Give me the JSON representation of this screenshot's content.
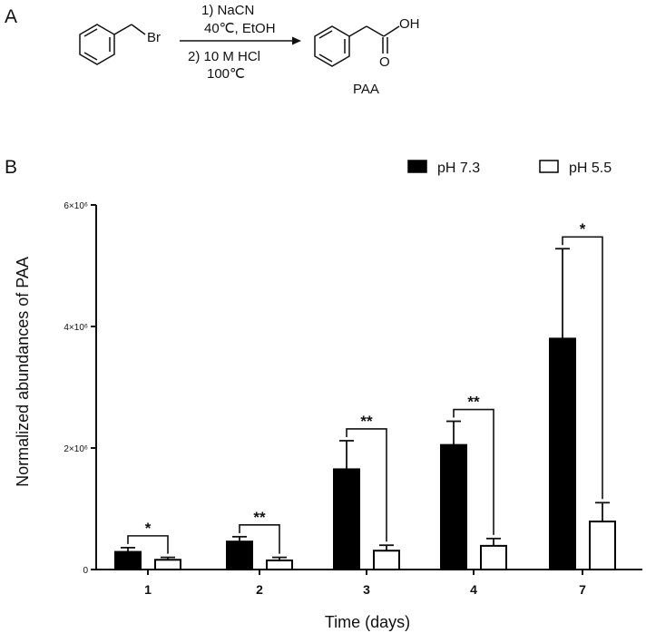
{
  "panel_a": {
    "label": "A",
    "reactant_substituent": "Br",
    "step1": "1) NaCN",
    "step1_conditions": "40℃, EtOH",
    "step2": "2) 10 M HCl",
    "step2_conditions": "100℃",
    "product_group": "OH",
    "product_carbonyl": "O",
    "product_name": "PAA"
  },
  "panel_b": {
    "label": "B"
  },
  "chart_data": {
    "type": "bar",
    "categories": [
      "1",
      "2",
      "3",
      "4",
      "7"
    ],
    "series": [
      {
        "name": "pH 7.3",
        "color": "#000000",
        "fill": "solid",
        "values": [
          290000,
          460000,
          1650000,
          2050000,
          3800000
        ],
        "errors": [
          70000,
          80000,
          470000,
          390000,
          1480000
        ]
      },
      {
        "name": "pH 5.5",
        "color": "#ffffff",
        "fill": "outline",
        "values": [
          160000,
          150000,
          310000,
          390000,
          790000
        ],
        "errors": [
          40000,
          50000,
          90000,
          120000,
          310000
        ]
      }
    ],
    "xlabel": "Time (days)",
    "ylabel": "Normalized abundances of PAA",
    "ylim": [
      0,
      6000000
    ],
    "yticks": [
      {
        "value": 0,
        "label": "0"
      },
      {
        "value": 2000000,
        "label": "2×10⁶"
      },
      {
        "value": 4000000,
        "label": "4×10⁶"
      },
      {
        "value": 6000000,
        "label": "6×10⁶"
      }
    ],
    "significance": [
      "*",
      "**",
      "**",
      "**",
      "*"
    ],
    "legend_position": "top-right",
    "grid": false
  }
}
